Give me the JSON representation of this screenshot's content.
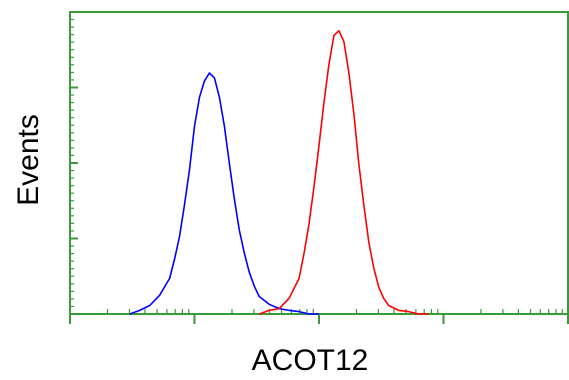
{
  "chart_data": {
    "type": "line",
    "title": "",
    "xlabel": "ACOT12",
    "ylabel": "Events",
    "xlim": [
      0,
      100
    ],
    "ylim": [
      0,
      100
    ],
    "x_scale": "log",
    "grid": false,
    "legend": "none",
    "series": [
      {
        "color": "#0000ff",
        "x": [
          12,
          14,
          16,
          18,
          20,
          21,
          22,
          23,
          24,
          25,
          26,
          27,
          28,
          29,
          30,
          31,
          32,
          33,
          34,
          35,
          36,
          37,
          38,
          40,
          42,
          44,
          46,
          48,
          50
        ],
        "y": [
          0,
          1,
          3,
          6,
          12,
          18,
          26,
          36,
          48,
          62,
          72,
          77,
          80,
          78,
          72,
          62,
          50,
          38,
          28,
          20,
          14,
          9,
          6,
          3,
          2,
          1,
          1,
          0,
          0
        ]
      },
      {
        "color": "#ff0000",
        "x": [
          38,
          40,
          42,
          44,
          46,
          47,
          48,
          49,
          50,
          51,
          52,
          53,
          54,
          55,
          56,
          57,
          58,
          59,
          60,
          61,
          62,
          63,
          64,
          66,
          68,
          70,
          72
        ],
        "y": [
          0,
          1,
          2,
          5,
          12,
          20,
          30,
          42,
          56,
          70,
          83,
          92,
          94,
          90,
          80,
          66,
          50,
          36,
          24,
          15,
          9,
          5,
          3,
          1,
          1,
          0,
          0
        ]
      }
    ]
  },
  "colors": {
    "axis": "#3a9a3a",
    "background": "#ffffff",
    "label": "#000000"
  }
}
